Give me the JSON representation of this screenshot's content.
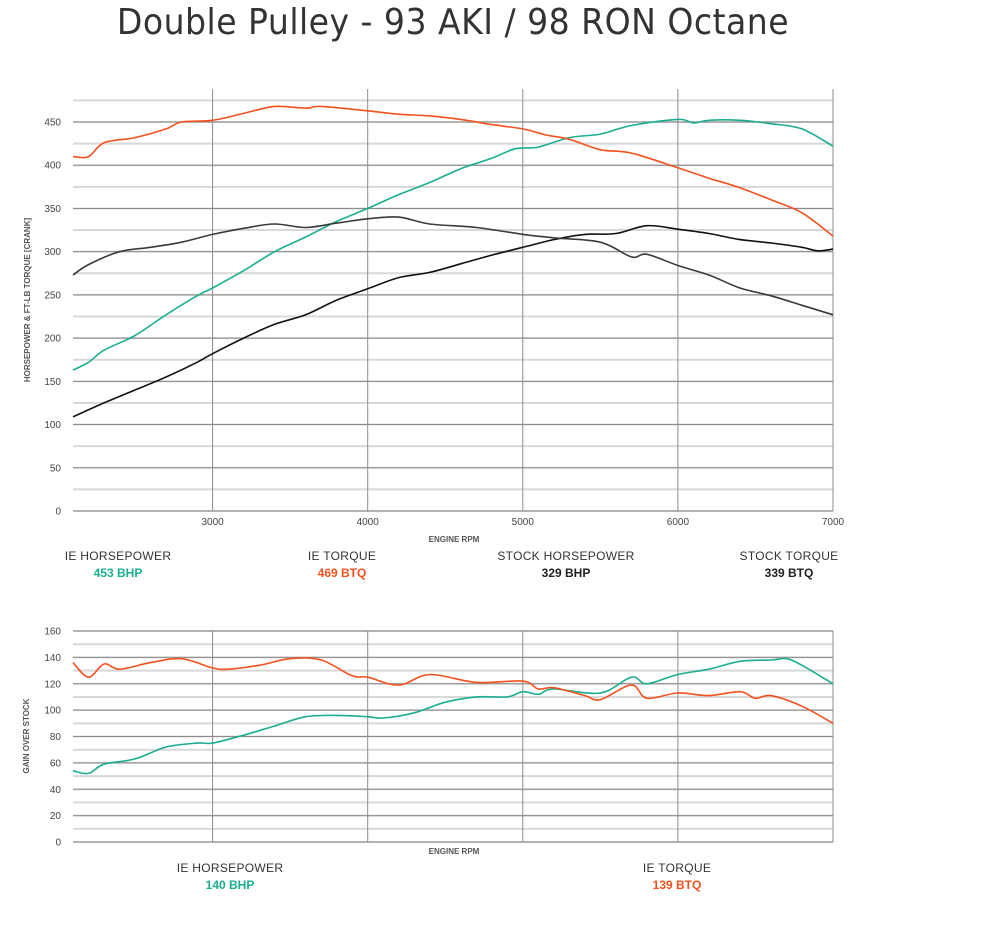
{
  "title": "Double Pulley - 93 AKI / 98 RON Octane",
  "colors": {
    "ie_hp": "#1aae8f",
    "ie_tq": "#f4511e",
    "stock_hp": "#111111",
    "stock_tq": "#3a3a3a",
    "grid_major": "#8c8c8c",
    "grid_minor": "#d8d8d8"
  },
  "top_legend": [
    {
      "label": "IE HORSEPOWER",
      "value": "453 BHP",
      "color": "#1aae8f"
    },
    {
      "label": "IE TORQUE",
      "value": "469 BTQ",
      "color": "#f4511e"
    },
    {
      "label": "STOCK HORSEPOWER",
      "value": "329 BHP",
      "color": "#222222"
    },
    {
      "label": "STOCK TORQUE",
      "value": "339 BTQ",
      "color": "#222222"
    }
  ],
  "bottom_legend": [
    {
      "label": "IE HORSEPOWER",
      "value": "140 BHP",
      "color": "#1aae8f"
    },
    {
      "label": "IE TORQUE",
      "value": "139 BTQ",
      "color": "#f4511e"
    }
  ],
  "chart_data": [
    {
      "type": "line",
      "title": "Double Pulley - 93 AKI / 98 RON Octane",
      "xlabel": "ENGINE RPM",
      "ylabel": "HORSEPOWER & FT-LB TORQUE [CRANK]",
      "xlim": [
        2100,
        7000
      ],
      "ylim": [
        0,
        475
      ],
      "xticks": [
        3000,
        4000,
        5000,
        6000,
        7000
      ],
      "yticks": [
        0,
        50,
        100,
        150,
        200,
        250,
        300,
        350,
        400,
        450
      ],
      "grid": true,
      "legend_position": "bottom",
      "series": [
        {
          "name": "IE HORSEPOWER",
          "peak": "453 BHP",
          "color": "#1aae8f",
          "x": [
            2100,
            2200,
            2300,
            2500,
            2700,
            2900,
            3000,
            3200,
            3400,
            3600,
            3800,
            4000,
            4200,
            4400,
            4600,
            4800,
            4950,
            5100,
            5300,
            5500,
            5700,
            6000,
            6100,
            6200,
            6400,
            6600,
            6800,
            7000
          ],
          "y": [
            163,
            172,
            186,
            203,
            227,
            249,
            258,
            278,
            300,
            317,
            335,
            350,
            366,
            380,
            396,
            408,
            419,
            421,
            432,
            436,
            446,
            453,
            449,
            452,
            452,
            448,
            442,
            422
          ]
        },
        {
          "name": "IE TORQUE",
          "peak": "469 BTQ",
          "color": "#f4511e",
          "x": [
            2100,
            2200,
            2300,
            2500,
            2700,
            2800,
            3000,
            3200,
            3400,
            3600,
            3700,
            4000,
            4200,
            4400,
            4600,
            4800,
            5000,
            5150,
            5300,
            5500,
            5700,
            6000,
            6200,
            6400,
            6600,
            6800,
            7000
          ],
          "y": [
            410,
            410,
            426,
            432,
            442,
            450,
            452,
            460,
            468,
            466,
            468,
            463,
            459,
            457,
            453,
            447,
            442,
            435,
            430,
            418,
            414,
            397,
            385,
            374,
            360,
            345,
            318
          ]
        },
        {
          "name": "STOCK HORSEPOWER",
          "peak": "329 BHP",
          "color": "#111111",
          "x": [
            2100,
            2300,
            2500,
            2700,
            2900,
            3000,
            3200,
            3400,
            3600,
            3800,
            4000,
            4200,
            4400,
            4600,
            4800,
            5000,
            5200,
            5400,
            5600,
            5800,
            6000,
            6200,
            6400,
            6600,
            6800,
            6900,
            7000
          ],
          "y": [
            109,
            125,
            140,
            155,
            172,
            182,
            200,
            216,
            227,
            244,
            257,
            270,
            276,
            286,
            296,
            305,
            314,
            320,
            321,
            330,
            326,
            321,
            314,
            310,
            305,
            301,
            303
          ]
        },
        {
          "name": "STOCK TORQUE",
          "peak": "339 BTQ",
          "color": "#3a3a3a",
          "x": [
            2100,
            2200,
            2400,
            2600,
            2800,
            3000,
            3200,
            3400,
            3600,
            3800,
            4000,
            4200,
            4400,
            4700,
            5000,
            5200,
            5500,
            5700,
            5800,
            6000,
            6200,
            6400,
            6600,
            6800,
            7000
          ],
          "y": [
            273,
            285,
            300,
            305,
            311,
            320,
            327,
            332,
            328,
            333,
            338,
            340,
            332,
            328,
            320,
            316,
            311,
            294,
            297,
            284,
            273,
            258,
            249,
            238,
            227
          ]
        }
      ]
    },
    {
      "type": "line",
      "title": "Gain Over Stock",
      "xlabel": "ENGINE RPM",
      "ylabel": "GAIN OVER STOCK",
      "xlim": [
        2100,
        7000
      ],
      "ylim": [
        0,
        160
      ],
      "xticks": [
        3000,
        4000,
        5000,
        6000,
        7000
      ],
      "yticks": [
        0,
        20,
        40,
        60,
        80,
        100,
        120,
        140,
        160
      ],
      "grid": true,
      "legend_position": "bottom",
      "series": [
        {
          "name": "IE HORSEPOWER",
          "peak": "140 BHP",
          "color": "#1aae8f",
          "x": [
            2100,
            2200,
            2300,
            2500,
            2700,
            2900,
            3000,
            3200,
            3400,
            3600,
            3800,
            4000,
            4100,
            4300,
            4500,
            4700,
            4900,
            5000,
            5100,
            5200,
            5500,
            5700,
            5800,
            6000,
            6200,
            6400,
            6600,
            6700,
            6800,
            7000
          ],
          "y": [
            54,
            52,
            59,
            63,
            72,
            75,
            75,
            81,
            88,
            95,
            96,
            95,
            94,
            98,
            106,
            110,
            110,
            114,
            112,
            116,
            113,
            125,
            120,
            127,
            131,
            137,
            138,
            139,
            134,
            120
          ]
        },
        {
          "name": "IE TORQUE",
          "peak": "139 BTQ",
          "color": "#f4511e",
          "x": [
            2100,
            2200,
            2300,
            2400,
            2600,
            2800,
            3000,
            3100,
            3300,
            3500,
            3700,
            3900,
            4000,
            4200,
            4400,
            4700,
            5000,
            5100,
            5200,
            5400,
            5500,
            5700,
            5800,
            6000,
            6200,
            6400,
            6500,
            6600,
            6800,
            7000
          ],
          "y": [
            136,
            125,
            135,
            131,
            136,
            139,
            132,
            131,
            134,
            139,
            138,
            126,
            125,
            119,
            127,
            121,
            122,
            116,
            117,
            111,
            108,
            119,
            109,
            113,
            111,
            114,
            109,
            111,
            103,
            90
          ]
        }
      ]
    }
  ]
}
